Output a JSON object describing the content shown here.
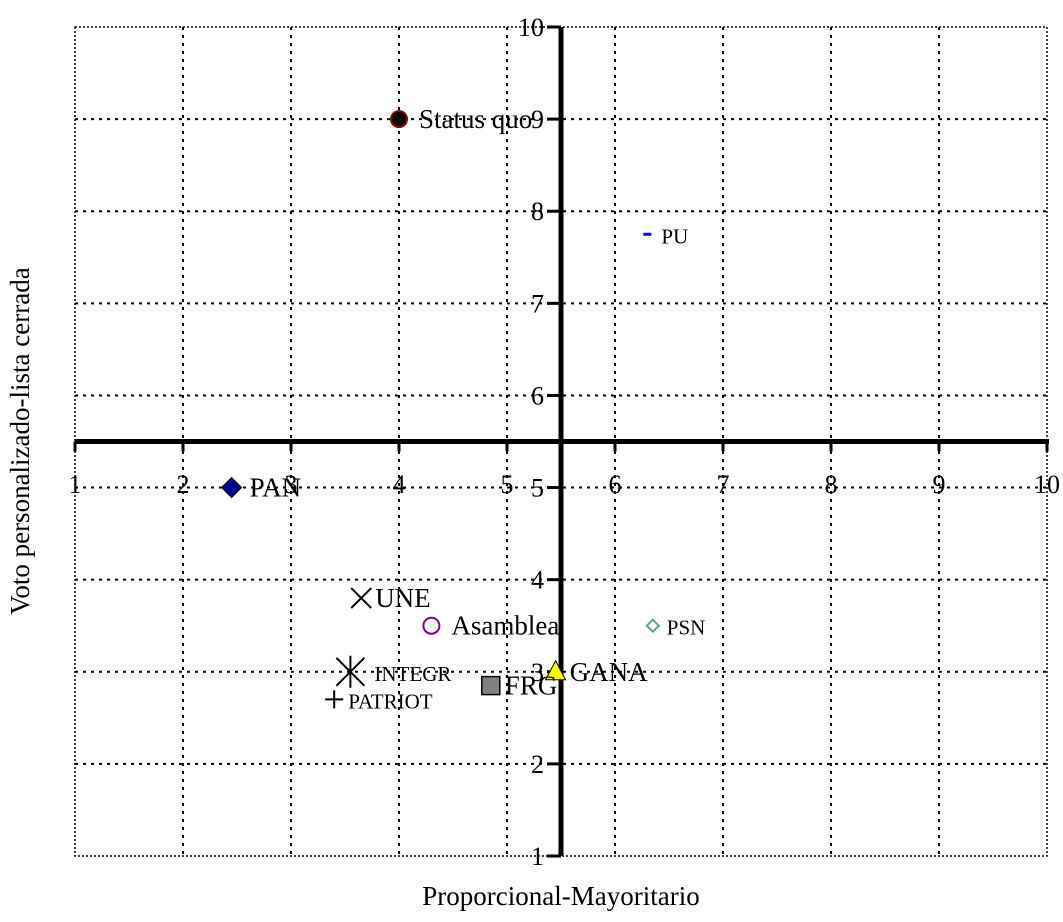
{
  "chart_data": {
    "type": "scatter",
    "title": "",
    "xlabel": "Proporcional-Mayoritario",
    "ylabel": "Voto personalizado-lista cerrada",
    "xlim": [
      1,
      10
    ],
    "ylim": [
      1,
      10
    ],
    "axis_crossing": {
      "x": 5.5,
      "y": 5.5
    },
    "grid": true,
    "x_ticks": [
      1,
      2,
      3,
      4,
      5,
      6,
      7,
      8,
      9,
      10
    ],
    "y_ticks": [
      1,
      2,
      3,
      4,
      5,
      6,
      7,
      8,
      9,
      10
    ],
    "x_tick_labels": [
      "1",
      "2",
      "3",
      "4",
      "5",
      "6",
      "7",
      "8",
      "9",
      "10"
    ],
    "y_tick_labels": [
      "1",
      "2",
      "3",
      "4",
      "5",
      "6",
      "7",
      "8",
      "9",
      "10"
    ],
    "points": [
      {
        "label": "Status quo",
        "x": 4.0,
        "y": 9.0,
        "marker": "circle",
        "color": "#000000"
      },
      {
        "label": "PU",
        "x": 6.3,
        "y": 7.75,
        "marker": "dash",
        "color": "#0000ff"
      },
      {
        "label": "PAN",
        "x": 2.45,
        "y": 5.0,
        "marker": "diamond",
        "color": "#00008b"
      },
      {
        "label": "UNE",
        "x": 3.65,
        "y": 3.8,
        "marker": "x",
        "color": "#000000"
      },
      {
        "label": "Asamblea",
        "x": 4.3,
        "y": 3.5,
        "marker": "circle-open",
        "color": "#800080"
      },
      {
        "label": "PSN",
        "x": 6.35,
        "y": 3.5,
        "marker": "diamond-small",
        "color": "#5f9ea0"
      },
      {
        "label": "GANA",
        "x": 5.45,
        "y": 3.0,
        "marker": "triangle",
        "color": "#ffff00"
      },
      {
        "label": "INTEGR",
        "x": 3.55,
        "y": 3.0,
        "marker": "asterisk",
        "color": "#000000"
      },
      {
        "label": "FRG",
        "x": 4.85,
        "y": 2.85,
        "marker": "square",
        "color": "#808080"
      },
      {
        "label": "PATRIOT",
        "x": 3.4,
        "y": 2.7,
        "marker": "plus",
        "color": "#000000"
      }
    ]
  }
}
